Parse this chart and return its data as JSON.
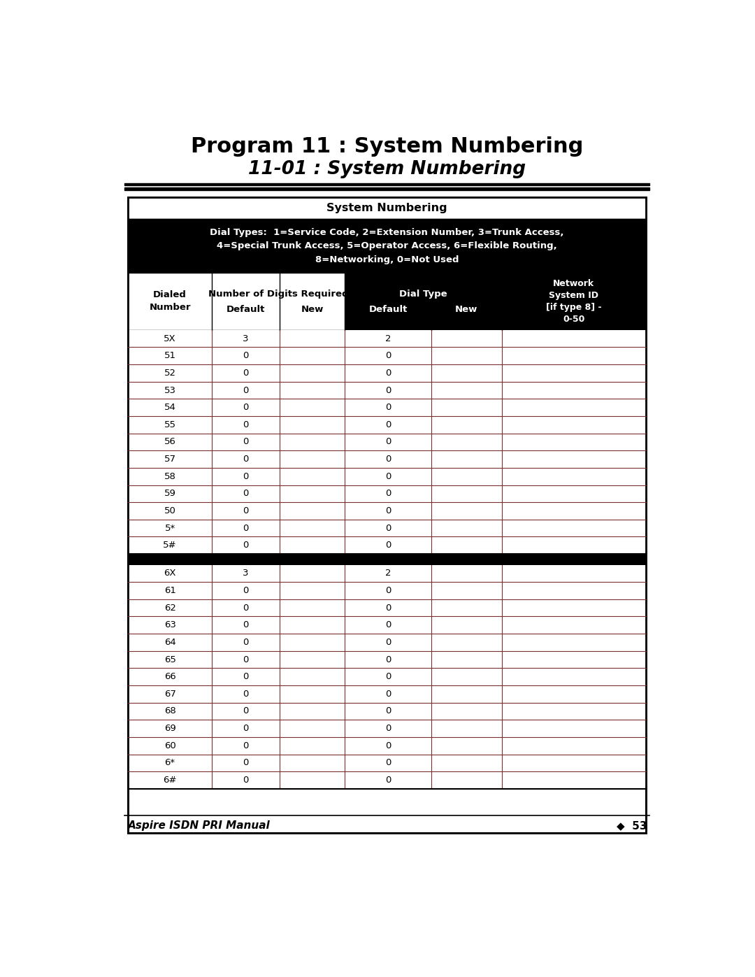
{
  "title_line1": "Program 11 : System Numbering",
  "title_line2": "11-01 : System Numbering",
  "table_title": "System Numbering",
  "dial_types_text": "Dial Types:  1=Service Code, 2=Extension Number, 3=Trunk Access,\n4=Special Trunk Access, 5=Operator Access, 6=Flexible Routing,\n8=Networking, 0=Not Used",
  "section1_rows": [
    [
      "5X",
      "3",
      "",
      "2",
      "",
      ""
    ],
    [
      "51",
      "0",
      "",
      "0",
      "",
      ""
    ],
    [
      "52",
      "0",
      "",
      "0",
      "",
      ""
    ],
    [
      "53",
      "0",
      "",
      "0",
      "",
      ""
    ],
    [
      "54",
      "0",
      "",
      "0",
      "",
      ""
    ],
    [
      "55",
      "0",
      "",
      "0",
      "",
      ""
    ],
    [
      "56",
      "0",
      "",
      "0",
      "",
      ""
    ],
    [
      "57",
      "0",
      "",
      "0",
      "",
      ""
    ],
    [
      "58",
      "0",
      "",
      "0",
      "",
      ""
    ],
    [
      "59",
      "0",
      "",
      "0",
      "",
      ""
    ],
    [
      "50",
      "0",
      "",
      "0",
      "",
      ""
    ],
    [
      "5*",
      "0",
      "",
      "0",
      "",
      ""
    ],
    [
      "5#",
      "0",
      "",
      "0",
      "",
      ""
    ]
  ],
  "section2_rows": [
    [
      "6X",
      "3",
      "",
      "2",
      "",
      ""
    ],
    [
      "61",
      "0",
      "",
      "0",
      "",
      ""
    ],
    [
      "62",
      "0",
      "",
      "0",
      "",
      ""
    ],
    [
      "63",
      "0",
      "",
      "0",
      "",
      ""
    ],
    [
      "64",
      "0",
      "",
      "0",
      "",
      ""
    ],
    [
      "65",
      "0",
      "",
      "0",
      "",
      ""
    ],
    [
      "66",
      "0",
      "",
      "0",
      "",
      ""
    ],
    [
      "67",
      "0",
      "",
      "0",
      "",
      ""
    ],
    [
      "68",
      "0",
      "",
      "0",
      "",
      ""
    ],
    [
      "69",
      "0",
      "",
      "0",
      "",
      ""
    ],
    [
      "60",
      "0",
      "",
      "0",
      "",
      ""
    ],
    [
      "6*",
      "0",
      "",
      "0",
      "",
      ""
    ],
    [
      "6#",
      "0",
      "",
      "0",
      "",
      ""
    ]
  ],
  "footer_left": "Aspire ISDN PRI Manual",
  "footer_right": "◆  53",
  "row_line_color": "#7a3030",
  "sep_color": "#000000",
  "outer_border": "#000000",
  "header_text_color_white": "#ffffff",
  "header_text_color_black": "#000000"
}
